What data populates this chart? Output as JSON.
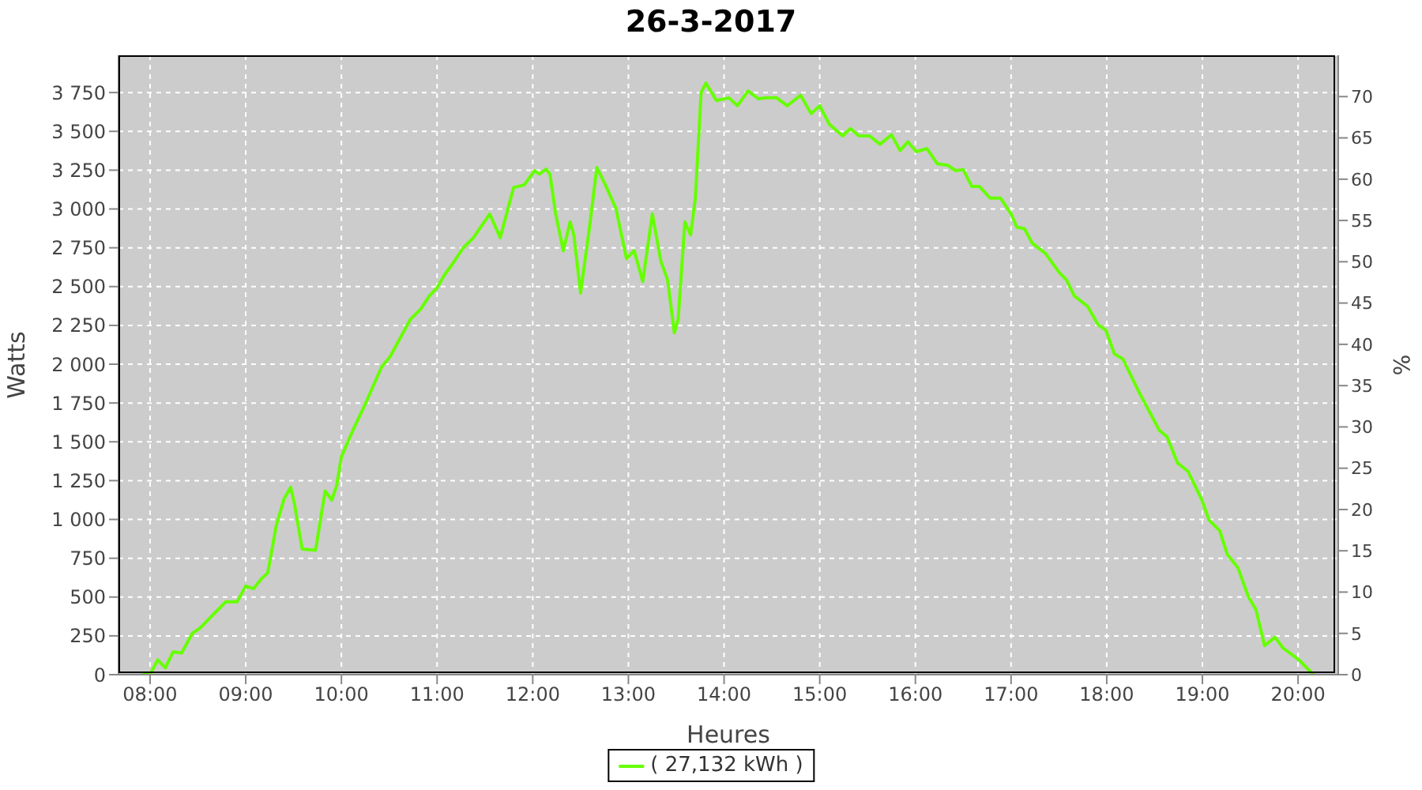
{
  "chart_data": {
    "type": "line",
    "title": "26-3-2017",
    "xlabel": "Heures",
    "ylabel": "Watts",
    "y2label": "%",
    "x": [
      7.91,
      8.0,
      8.08,
      8.16,
      8.24,
      8.33,
      8.44,
      8.52,
      8.79,
      8.91,
      9.0,
      9.08,
      9.16,
      9.23,
      9.32,
      9.4,
      9.47,
      9.51,
      9.59,
      9.73,
      9.83,
      9.9,
      9.95,
      10.0,
      10.12,
      10.25,
      10.42,
      10.51,
      10.72,
      10.83,
      10.92,
      11.0,
      11.08,
      11.16,
      11.27,
      11.38,
      11.55,
      11.66,
      11.8,
      11.91,
      12.02,
      12.07,
      12.14,
      12.18,
      12.24,
      12.32,
      12.39,
      12.43,
      12.5,
      12.59,
      12.67,
      12.76,
      12.87,
      12.98,
      13.06,
      13.15,
      13.25,
      13.34,
      13.41,
      13.48,
      13.52,
      13.59,
      13.65,
      13.7,
      13.76,
      13.81,
      13.92,
      14.05,
      14.14,
      14.25,
      14.36,
      14.44,
      14.55,
      14.66,
      14.8,
      14.91,
      15.0,
      15.1,
      15.24,
      15.32,
      15.41,
      15.52,
      15.63,
      15.75,
      15.84,
      15.92,
      16.01,
      16.12,
      16.23,
      16.34,
      16.42,
      16.5,
      16.59,
      16.67,
      16.78,
      16.89,
      17.0,
      17.06,
      17.14,
      17.22,
      17.36,
      17.5,
      17.58,
      17.66,
      17.8,
      17.91,
      17.99,
      18.08,
      18.17,
      18.33,
      18.55,
      18.63,
      18.74,
      18.85,
      18.99,
      19.07,
      19.18,
      19.26,
      19.37,
      19.48,
      19.56,
      19.65,
      19.76,
      19.84,
      20.01,
      20.16
    ],
    "series": [
      {
        "name": "( 27,132 kWh )",
        "color": "#66ff00",
        "values": [
          0,
          0,
          95,
          44,
          146,
          140,
          265,
          299,
          469,
          469,
          571,
          554,
          615,
          656,
          962,
          1132,
          1207,
          1098,
          809,
          802,
          1183,
          1125,
          1217,
          1404,
          1574,
          1744,
          1982,
          2050,
          2288,
          2356,
          2441,
          2492,
          2578,
          2645,
          2747,
          2815,
          2968,
          2815,
          3138,
          3155,
          3247,
          3224,
          3257,
          3224,
          2968,
          2731,
          2917,
          2832,
          2458,
          2866,
          3267,
          3155,
          3002,
          2680,
          2731,
          2533,
          2968,
          2662,
          2543,
          2203,
          2288,
          2917,
          2832,
          3070,
          3750,
          3811,
          3699,
          3716,
          3665,
          3760,
          3710,
          3716,
          3716,
          3665,
          3733,
          3614,
          3665,
          3546,
          3471,
          3518,
          3471,
          3471,
          3417,
          3478,
          3376,
          3433,
          3369,
          3389,
          3291,
          3281,
          3247,
          3254,
          3145,
          3145,
          3070,
          3070,
          2968,
          2883,
          2873,
          2781,
          2713,
          2594,
          2543,
          2441,
          2373,
          2254,
          2220,
          2067,
          2033,
          1829,
          1574,
          1533,
          1364,
          1309,
          1132,
          996,
          928,
          775,
          690,
          503,
          418,
          187,
          241,
          173,
          95,
          0
        ]
      }
    ],
    "xlim": [
      7.67,
      20.42
    ],
    "ylim": [
      0,
      3990
    ],
    "y2lim": [
      0,
      75
    ],
    "xticks": [
      {
        "value": 8,
        "label": "08:00"
      },
      {
        "value": 9,
        "label": "09:00"
      },
      {
        "value": 10,
        "label": "10:00"
      },
      {
        "value": 11,
        "label": "11:00"
      },
      {
        "value": 12,
        "label": "12:00"
      },
      {
        "value": 13,
        "label": "13:00"
      },
      {
        "value": 14,
        "label": "14:00"
      },
      {
        "value": 15,
        "label": "15:00"
      },
      {
        "value": 16,
        "label": "16:00"
      },
      {
        "value": 17,
        "label": "17:00"
      },
      {
        "value": 18,
        "label": "18:00"
      },
      {
        "value": 19,
        "label": "19:00"
      },
      {
        "value": 20,
        "label": "20:00"
      }
    ],
    "yticks": [
      0,
      250,
      500,
      750,
      {
        "value": 1000,
        "label": "1 000"
      },
      {
        "value": 1250,
        "label": "1 250"
      },
      {
        "value": 1500,
        "label": "1 500"
      },
      {
        "value": 1750,
        "label": "1 750"
      },
      {
        "value": 2000,
        "label": "2 000"
      },
      {
        "value": 2250,
        "label": "2 250"
      },
      {
        "value": 2500,
        "label": "2 500"
      },
      {
        "value": 2750,
        "label": "2 750"
      },
      {
        "value": 3000,
        "label": "3 000"
      },
      {
        "value": 3250,
        "label": "3 250"
      },
      {
        "value": 3500,
        "label": "3 500"
      },
      {
        "value": 3750,
        "label": "3 750"
      }
    ],
    "y2ticks": [
      0,
      5,
      10,
      15,
      20,
      25,
      30,
      35,
      40,
      45,
      50,
      55,
      60,
      65,
      70
    ],
    "grid": true,
    "legend": "bottom",
    "marker": "none",
    "line_style": "solid"
  }
}
